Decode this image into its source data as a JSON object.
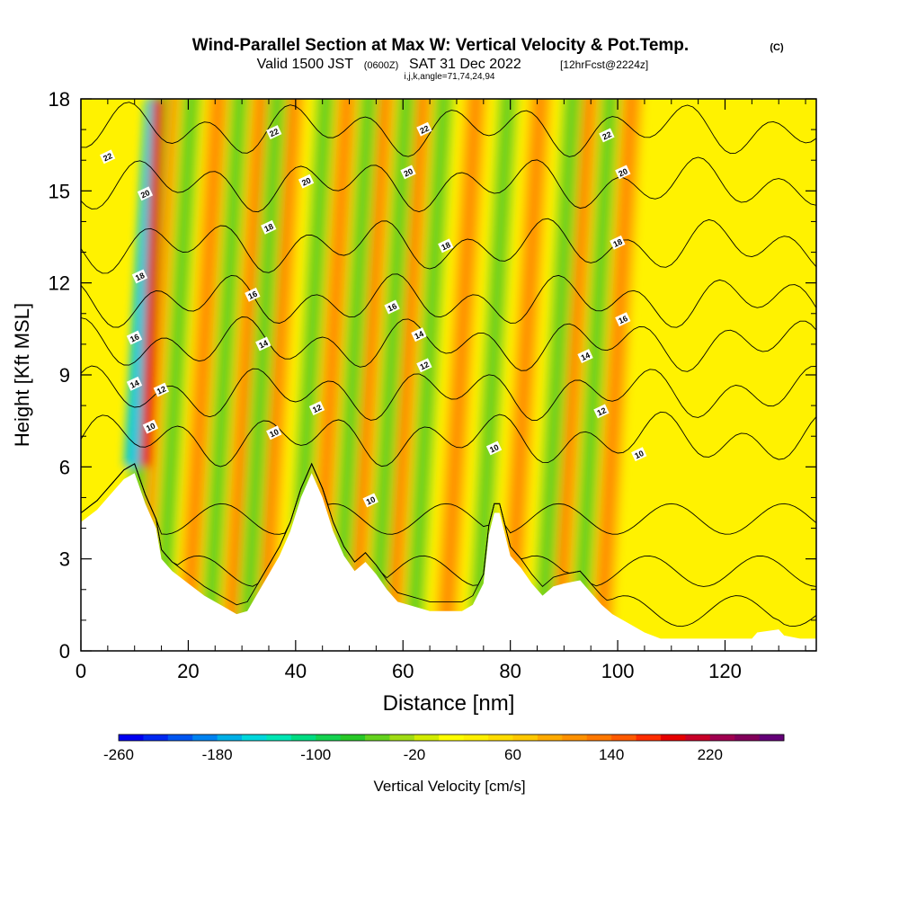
{
  "chart_data": {
    "type": "heatmap",
    "title": "Wind-Parallel Section at Max W: Vertical Velocity & Pot.Temp.",
    "title_mark": "(C)",
    "subtitle": {
      "valid": "Valid 1500 JST",
      "utc": "(0600Z)",
      "date": "SAT 31 Dec 2022",
      "forecast": "[12hrFcst@2224z]"
    },
    "params_line": "i,j,k,angle=71,74,24,94",
    "xlabel": "Distance [nm]",
    "ylabel": "Height [Kft MSL]",
    "xlim": [
      0,
      137
    ],
    "ylim": [
      0,
      18
    ],
    "x_ticks": [
      "0",
      "20",
      "40",
      "60",
      "80",
      "100",
      "120"
    ],
    "y_ticks": [
      "0",
      "3",
      "6",
      "9",
      "12",
      "15",
      "18"
    ],
    "colorbar": {
      "label": "Vertical Velocity [cm/s]",
      "min": -260,
      "max": 260,
      "step": 20,
      "tick_labels": [
        "-260",
        "-180",
        "-100",
        "-20",
        "60",
        "140",
        "220"
      ],
      "colors": [
        "#0000f0",
        "#0028f0",
        "#0055f0",
        "#0082f0",
        "#00afe6",
        "#00d7dc",
        "#00e6b4",
        "#00dc82",
        "#14d250",
        "#28c828",
        "#64d21e",
        "#a0dc14",
        "#d2ec00",
        "#ffff00",
        "#fff000",
        "#ffdc00",
        "#ffc800",
        "#ffaa00",
        "#ff9100",
        "#ff7800",
        "#ff5a00",
        "#ff2d00",
        "#e60000",
        "#c80028",
        "#a00050",
        "#82005a",
        "#640078"
      ]
    },
    "terrain_kft": [
      [
        0,
        4.2
      ],
      [
        3,
        4.6
      ],
      [
        6,
        5.2
      ],
      [
        8,
        5.6
      ],
      [
        10,
        5.8
      ],
      [
        12,
        4.8
      ],
      [
        14,
        4.0
      ],
      [
        15,
        3.0
      ],
      [
        17,
        2.6
      ],
      [
        20,
        2.2
      ],
      [
        23,
        1.8
      ],
      [
        26,
        1.5
      ],
      [
        29,
        1.2
      ],
      [
        31,
        1.3
      ],
      [
        33,
        1.9
      ],
      [
        35,
        2.5
      ],
      [
        37,
        3.1
      ],
      [
        39,
        3.9
      ],
      [
        41,
        5.0
      ],
      [
        43,
        5.8
      ],
      [
        45,
        5.0
      ],
      [
        47,
        3.9
      ],
      [
        49,
        3.1
      ],
      [
        51,
        2.6
      ],
      [
        53,
        2.9
      ],
      [
        55,
        2.5
      ],
      [
        57,
        2.0
      ],
      [
        59,
        1.6
      ],
      [
        61,
        1.5
      ],
      [
        63,
        1.4
      ],
      [
        65,
        1.3
      ],
      [
        68,
        1.3
      ],
      [
        71,
        1.3
      ],
      [
        73,
        1.5
      ],
      [
        75,
        2.2
      ],
      [
        76,
        3.8
      ],
      [
        77,
        4.5
      ],
      [
        78,
        4.5
      ],
      [
        79,
        3.8
      ],
      [
        80,
        3.1
      ],
      [
        82,
        2.7
      ],
      [
        84,
        2.2
      ],
      [
        86,
        1.8
      ],
      [
        88,
        2.1
      ],
      [
        90,
        2.2
      ],
      [
        93,
        2.3
      ],
      [
        95,
        1.9
      ],
      [
        97,
        1.5
      ],
      [
        99,
        1.2
      ],
      [
        102,
        0.9
      ],
      [
        105,
        0.6
      ],
      [
        108,
        0.4
      ],
      [
        112,
        0.4
      ],
      [
        117,
        0.4
      ],
      [
        121,
        0.4
      ],
      [
        125,
        0.4
      ],
      [
        126,
        0.6
      ],
      [
        130,
        0.7
      ],
      [
        131,
        0.5
      ],
      [
        134,
        0.4
      ],
      [
        137,
        0.4
      ]
    ],
    "updraft_bands_nm": [
      13,
      22,
      30,
      36,
      46,
      53,
      60,
      70,
      82,
      91,
      99
    ],
    "downdraft_bands_nm": [
      11,
      17,
      26,
      33,
      42,
      50,
      57,
      64,
      76,
      88,
      95
    ],
    "theta_contours_c": [
      {
        "level": "10",
        "y_kft": 6.9
      },
      {
        "level": "12",
        "y_kft": 8.4
      },
      {
        "level": "14",
        "y_kft": 10.0
      },
      {
        "level": "16",
        "y_kft": 11.4
      },
      {
        "level": "18",
        "y_kft": 13.2
      },
      {
        "level": "20",
        "y_kft": 15.2
      },
      {
        "level": "22",
        "y_kft": 17.0
      }
    ],
    "contour_labels": [
      {
        "text": "22",
        "x": 5,
        "y": 16.1
      },
      {
        "text": "22",
        "x": 36,
        "y": 16.9
      },
      {
        "text": "22",
        "x": 64,
        "y": 17.0
      },
      {
        "text": "22",
        "x": 98,
        "y": 16.8
      },
      {
        "text": "20",
        "x": 12,
        "y": 14.9
      },
      {
        "text": "20",
        "x": 42,
        "y": 15.3
      },
      {
        "text": "20",
        "x": 61,
        "y": 15.6
      },
      {
        "text": "20",
        "x": 101,
        "y": 15.6
      },
      {
        "text": "18",
        "x": 35,
        "y": 13.8
      },
      {
        "text": "18",
        "x": 68,
        "y": 13.2
      },
      {
        "text": "18",
        "x": 100,
        "y": 13.3
      },
      {
        "text": "18",
        "x": 11,
        "y": 12.2
      },
      {
        "text": "16",
        "x": 32,
        "y": 11.6
      },
      {
        "text": "16",
        "x": 58,
        "y": 11.2
      },
      {
        "text": "16",
        "x": 101,
        "y": 10.8
      },
      {
        "text": "16",
        "x": 10,
        "y": 10.2
      },
      {
        "text": "14",
        "x": 34,
        "y": 10.0
      },
      {
        "text": "14",
        "x": 63,
        "y": 10.3
      },
      {
        "text": "14",
        "x": 94,
        "y": 9.6
      },
      {
        "text": "14",
        "x": 10,
        "y": 8.7
      },
      {
        "text": "12",
        "x": 15,
        "y": 8.5
      },
      {
        "text": "12",
        "x": 44,
        "y": 7.9
      },
      {
        "text": "12",
        "x": 64,
        "y": 9.3
      },
      {
        "text": "12",
        "x": 97,
        "y": 7.8
      },
      {
        "text": "10",
        "x": 13,
        "y": 7.3
      },
      {
        "text": "10",
        "x": 36,
        "y": 7.1
      },
      {
        "text": "10",
        "x": 77,
        "y": 6.6
      },
      {
        "text": "10",
        "x": 104,
        "y": 6.4
      },
      {
        "text": "10",
        "x": 54,
        "y": 4.9
      }
    ]
  }
}
